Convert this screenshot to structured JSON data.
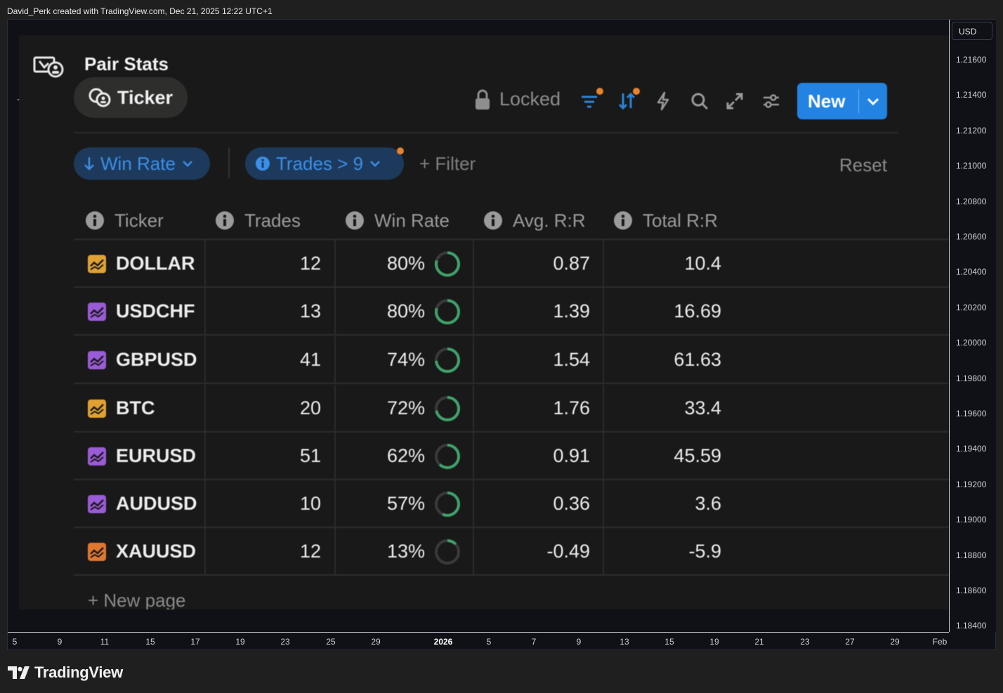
{
  "attribution": "David_Perk created with TradingView.com, Dec 21, 2025 12:22 UTC+1",
  "price_axis": {
    "currency": "USD",
    "labels": [
      "1.21600",
      "1.21400",
      "1.21200",
      "1.21000",
      "1.20800",
      "1.20600",
      "1.20400",
      "1.20200",
      "1.20000",
      "1.19800",
      "1.19600",
      "1.19400",
      "1.19200",
      "1.19000",
      "1.18800",
      "1.18600",
      "1.18400"
    ]
  },
  "time_axis": {
    "labels": [
      {
        "text": "5",
        "bold": false
      },
      {
        "text": "9",
        "bold": false
      },
      {
        "text": "11",
        "bold": false
      },
      {
        "text": "15",
        "bold": false
      },
      {
        "text": "17",
        "bold": false
      },
      {
        "text": "19",
        "bold": false
      },
      {
        "text": "23",
        "bold": false
      },
      {
        "text": "25",
        "bold": false
      },
      {
        "text": "29",
        "bold": false
      },
      {
        "text": "2026",
        "bold": true
      },
      {
        "text": "5",
        "bold": false
      },
      {
        "text": "7",
        "bold": false
      },
      {
        "text": "9",
        "bold": false
      },
      {
        "text": "13",
        "bold": false
      },
      {
        "text": "15",
        "bold": false
      },
      {
        "text": "19",
        "bold": false
      },
      {
        "text": "21",
        "bold": false
      },
      {
        "text": "23",
        "bold": false
      },
      {
        "text": "27",
        "bold": false
      },
      {
        "text": "29",
        "bold": false
      },
      {
        "text": "Feb",
        "bold": false
      }
    ]
  },
  "panel": {
    "title": "Pair Stats",
    "view_tab": "Ticker",
    "toolbar": {
      "locked_label": "Locked",
      "new_label": "New"
    },
    "filters": {
      "sort_chip": "Win Rate",
      "filter_chip": "Trades > 9",
      "add_filter": "+ Filter",
      "reset": "Reset"
    },
    "columns": [
      "Ticker",
      "Trades",
      "Win Rate",
      "Avg. R:R",
      "Total R:R"
    ],
    "rows": [
      {
        "ticker": "DOLLAR",
        "trades": "12",
        "win_rate": "80%",
        "win_fraction": 0.8,
        "avg_rr": "0.87",
        "total_rr": "10.4",
        "icon_color": "#e0a132"
      },
      {
        "ticker": "USDCHF",
        "trades": "13",
        "win_rate": "80%",
        "win_fraction": 0.8,
        "avg_rr": "1.39",
        "total_rr": "16.69",
        "icon_color": "#9a5bd6"
      },
      {
        "ticker": "GBPUSD",
        "trades": "41",
        "win_rate": "74%",
        "win_fraction": 0.74,
        "avg_rr": "1.54",
        "total_rr": "61.63",
        "icon_color": "#9a5bd6"
      },
      {
        "ticker": "BTC",
        "trades": "20",
        "win_rate": "72%",
        "win_fraction": 0.72,
        "avg_rr": "1.76",
        "total_rr": "33.4",
        "icon_color": "#e0a132"
      },
      {
        "ticker": "EURUSD",
        "trades": "51",
        "win_rate": "62%",
        "win_fraction": 0.62,
        "avg_rr": "0.91",
        "total_rr": "45.59",
        "icon_color": "#9a5bd6"
      },
      {
        "ticker": "AUDUSD",
        "trades": "10",
        "win_rate": "57%",
        "win_fraction": 0.57,
        "avg_rr": "0.36",
        "total_rr": "3.6",
        "icon_color": "#9a5bd6"
      },
      {
        "ticker": "XAUUSD",
        "trades": "12",
        "win_rate": "13%",
        "win_fraction": 0.13,
        "avg_rr": "-0.49",
        "total_rr": "-5.9",
        "icon_color": "#e0772f"
      }
    ],
    "new_page": "+ New page",
    "accent_color": "#2383e2",
    "ring_color": "#3fa36b"
  },
  "brand": "TradingView"
}
